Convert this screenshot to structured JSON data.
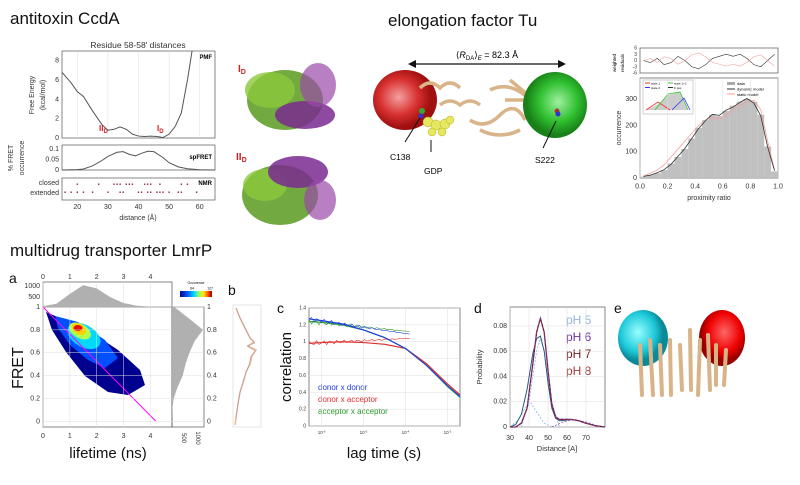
{
  "titles": {
    "ccda": "antitoxin CcdA",
    "eftu": "elongation factor Tu",
    "lmrp": "multidrug transporter LmrP"
  },
  "ccda": {
    "plot_title": "Residue 58-58' distances",
    "pmf_tag": "PMF",
    "spfret_tag": "spFRET",
    "nmr_tag": "NMR",
    "ylabel_pmf_1": "Free Energy",
    "ylabel_pmf_2": "(kcal/mol)",
    "ylabel_fret_1": "% FRET",
    "ylabel_fret_2": "occurrence",
    "nmr_closed": "closed",
    "nmr_extended": "extended",
    "xlabel": "distance (Å)",
    "state_II": "II",
    "state_I": "I",
    "state_sub": "D"
  },
  "eftu": {
    "dist_R": "R",
    "dist_sub": "DA",
    "dist_sub2": "E",
    "dist_value": " = 82.3 Å",
    "c138": "C138",
    "gdp": "GDP",
    "s222": "S222"
  },
  "prox": {
    "ylabel": "occurrence",
    "xlabel": "proximity ratio",
    "res_label_1": "weighted",
    "res_label_2": "residuals",
    "legend": [
      "data",
      "dynamic model",
      "static model"
    ],
    "inset_legend": [
      "state 1",
      "state 2",
      "state 1+2",
      "Σ pos"
    ]
  },
  "lmrp": {
    "panels": [
      "a",
      "b",
      "c",
      "d",
      "e"
    ],
    "a_xlabel": "lifetime (ns)",
    "a_ylabel": "FRET",
    "colorbar_title": "Occurence",
    "colorbar_ticks": [
      "64",
      "127"
    ],
    "c_xlabel": "lag time (s)",
    "c_ylabel": "correlation",
    "c_legend": [
      "donor x donor",
      "donor x acceptor",
      "acceptor x acceptor"
    ],
    "d_xlabel": "Distance [A]",
    "d_ylabel": "Probability",
    "d_legend": [
      "pH 5",
      "pH 6",
      "pH 7",
      "pH 8"
    ]
  },
  "colors": {
    "red": "#e03030",
    "green": "#2aa02a",
    "blue": "#2040e0",
    "magenta": "#ff00ff",
    "tan": "#e2c29a",
    "cyan": "#22c0d0",
    "ph5": "#8fb3e0",
    "ph6": "#7030a0",
    "ph7": "#6b1f1f",
    "ph8": "#a33b3b"
  },
  "chart_data": [
    {
      "id": "pmf",
      "type": "line",
      "title": "Residue 58-58' distances",
      "xlabel": "distance (Å)",
      "ylabel": "Free Energy (kcal/mol)",
      "xlim": [
        15,
        65
      ],
      "ylim": [
        0,
        9
      ],
      "xticks": [
        20,
        30,
        40,
        50,
        60
      ],
      "yticks": [
        0,
        2,
        4,
        6,
        8
      ],
      "x": [
        15,
        18,
        20,
        22,
        25,
        28,
        30,
        32,
        34,
        36,
        38,
        40,
        42,
        44,
        46,
        48,
        50,
        52,
        54,
        56,
        57.5
      ],
      "y": [
        6.8,
        5.7,
        4.8,
        4.3,
        2.8,
        1.4,
        0.8,
        0.9,
        1.15,
        0.9,
        0.4,
        0.2,
        0.15,
        0.2,
        0.15,
        0.05,
        0.4,
        1.2,
        2.6,
        6,
        9
      ]
    },
    {
      "id": "spfret",
      "type": "line",
      "ylabel": "% FRET occurrence",
      "xlim": [
        15,
        65
      ],
      "ylim": [
        0,
        0.12
      ],
      "yticks": [
        0,
        0.05,
        0.1
      ],
      "x": [
        15,
        20,
        22,
        25,
        28,
        30,
        33,
        35,
        37,
        39,
        41,
        43,
        45,
        48,
        50,
        53,
        56,
        60,
        65
      ],
      "y": [
        0,
        0.002,
        0.005,
        0.02,
        0.045,
        0.065,
        0.085,
        0.088,
        0.075,
        0.068,
        0.08,
        0.09,
        0.088,
        0.06,
        0.035,
        0.015,
        0.006,
        0.001,
        0
      ]
    },
    {
      "id": "nmr",
      "type": "scatter",
      "categories": [
        "closed",
        "extended"
      ],
      "closed": [
        20,
        27,
        32,
        33,
        34,
        36,
        37,
        38,
        42,
        43,
        44,
        47,
        54,
        56
      ],
      "extended": [
        16,
        18,
        20,
        22,
        25,
        30,
        34,
        35,
        40,
        41,
        43,
        44,
        46,
        47,
        48,
        50,
        53,
        54,
        59
      ]
    },
    {
      "id": "proximity",
      "type": "bar",
      "xlabel": "proximity ratio",
      "ylabel": "occurrence",
      "xlim": [
        0,
        1
      ],
      "ylim": [
        0,
        380
      ],
      "xticks": [
        0.0,
        0.2,
        0.4,
        0.6,
        0.8,
        1.0
      ],
      "yticks": [
        0,
        100,
        200,
        300
      ],
      "res_ticks": [
        6,
        3,
        0,
        -3,
        -6
      ],
      "bins": [
        0.025,
        0.075,
        0.125,
        0.175,
        0.225,
        0.275,
        0.325,
        0.375,
        0.425,
        0.475,
        0.525,
        0.575,
        0.625,
        0.675,
        0.725,
        0.775,
        0.825,
        0.875,
        0.925,
        0.975
      ],
      "series": [
        {
          "name": "data",
          "values": [
            5,
            12,
            18,
            30,
            55,
            80,
            110,
            150,
            190,
            220,
            240,
            235,
            255,
            275,
            290,
            300,
            290,
            240,
            120,
            25
          ]
        },
        {
          "name": "dynamic model",
          "values": [
            6,
            11,
            20,
            32,
            52,
            82,
            112,
            150,
            188,
            218,
            242,
            238,
            258,
            270,
            288,
            302,
            285,
            236,
            118,
            28
          ]
        },
        {
          "name": "static model",
          "values": [
            8,
            18,
            30,
            50,
            80,
            110,
            140,
            170,
            200,
            220,
            230,
            225,
            240,
            260,
            275,
            290,
            295,
            260,
            140,
            30
          ]
        }
      ],
      "residuals": [
        0,
        -1,
        1,
        -2,
        -1,
        2,
        0,
        -3,
        -4,
        -2,
        1,
        2,
        3,
        2,
        3,
        1,
        -2,
        -3,
        0,
        3
      ]
    },
    {
      "id": "a-heatmap",
      "type": "heatmap",
      "xlabel": "lifetime (ns)",
      "ylabel": "FRET",
      "xlim": [
        0,
        4.8
      ],
      "ylim": [
        -0.05,
        1
      ],
      "xticks": [
        0,
        1,
        2,
        3,
        4
      ],
      "yticks": [
        0,
        0.2,
        0.4,
        0.6,
        0.8,
        1
      ],
      "colorbar_range": [
        0,
        127
      ],
      "peak": {
        "lifetime": 1.4,
        "fret": 0.82
      },
      "top_hist_ticks": [
        500,
        1000
      ],
      "right_hist_ticks": [
        500,
        1000
      ],
      "top_hist": {
        "x": [
          0,
          0.5,
          1,
          1.5,
          2,
          2.5,
          3,
          3.5,
          4,
          4.5
        ],
        "y": [
          40,
          150,
          600,
          1000,
          850,
          450,
          180,
          60,
          20,
          5
        ]
      },
      "right_hist": {
        "fret": [
          0,
          0.1,
          0.2,
          0.3,
          0.4,
          0.5,
          0.6,
          0.7,
          0.8,
          0.9,
          1
        ],
        "y": [
          0,
          10,
          60,
          200,
          380,
          480,
          620,
          800,
          1100,
          600,
          80
        ]
      },
      "static_line": {
        "x": [
          0,
          4.2
        ],
        "y": [
          1,
          0
        ]
      }
    },
    {
      "id": "c-fcs",
      "type": "line",
      "xlabel": "lag time (s)",
      "ylabel": "correlation",
      "xscale": "log",
      "xlim_log10": [
        -6.3,
        -2.7
      ],
      "ylim": [
        0,
        1.4
      ],
      "xticks_log10": [
        -6,
        -5,
        -4,
        -3
      ],
      "yticks": [
        0,
        0.2,
        0.4,
        0.6,
        0.8,
        1,
        1.2,
        1.4
      ],
      "x_log10": [
        -6.3,
        -6,
        -5.5,
        -5,
        -4.5,
        -4,
        -3.5,
        -3,
        -2.7
      ],
      "series": [
        {
          "name": "donor x donor",
          "values": [
            1.27,
            1.25,
            1.21,
            1.14,
            1.05,
            0.92,
            0.72,
            0.48,
            0.35
          ]
        },
        {
          "name": "donor x acceptor",
          "values": [
            0.98,
            0.99,
            1.0,
            0.99,
            0.97,
            0.92,
            0.74,
            0.5,
            0.37
          ]
        },
        {
          "name": "acceptor x acceptor",
          "values": [
            1.24,
            1.23,
            1.2,
            1.14,
            1.05,
            0.92,
            0.72,
            0.47,
            0.34
          ]
        }
      ]
    },
    {
      "id": "d-distance",
      "type": "line",
      "xlabel": "Distance [A]",
      "ylabel": "Probability",
      "xlim": [
        30,
        80
      ],
      "ylim": [
        0,
        0.095
      ],
      "xticks": [
        30,
        40,
        50,
        60,
        70
      ],
      "yticks": [
        0,
        0.02,
        0.04,
        0.06,
        0.08
      ],
      "x": [
        30,
        33,
        36,
        39,
        42,
        44,
        46,
        48,
        50,
        52,
        54,
        56,
        58,
        62,
        66,
        70,
        75,
        80
      ],
      "series": [
        {
          "name": "pH 5",
          "values": [
            0,
            0.002,
            0.01,
            0.03,
            0.058,
            0.07,
            0.072,
            0.06,
            0.035,
            0.015,
            0.007,
            0.005,
            0.005,
            0.006,
            0.005,
            0.003,
            0.001,
            0
          ]
        },
        {
          "name": "pH 6",
          "values": [
            0,
            0,
            0.003,
            0.015,
            0.05,
            0.075,
            0.086,
            0.075,
            0.045,
            0.018,
            0.008,
            0.006,
            0.006,
            0.006,
            0.005,
            0.003,
            0.001,
            0
          ]
        },
        {
          "name": "pH 7",
          "values": [
            0,
            0,
            0.003,
            0.015,
            0.05,
            0.075,
            0.086,
            0.075,
            0.045,
            0.018,
            0.008,
            0.006,
            0.006,
            0.006,
            0.005,
            0.003,
            0.001,
            0
          ]
        },
        {
          "name": "pH 8",
          "values": [
            0,
            0,
            0.003,
            0.015,
            0.05,
            0.075,
            0.086,
            0.075,
            0.045,
            0.018,
            0.008,
            0.006,
            0.006,
            0.006,
            0.005,
            0.003,
            0.001,
            0
          ]
        }
      ]
    }
  ]
}
